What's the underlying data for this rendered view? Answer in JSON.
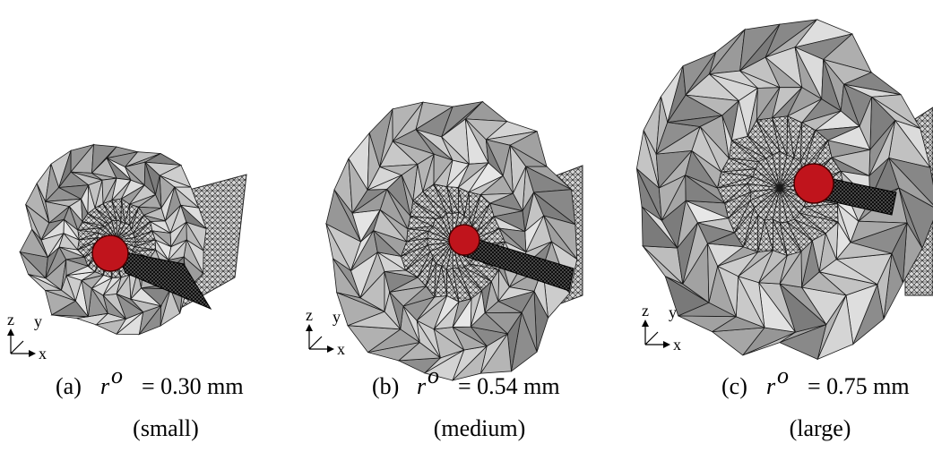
{
  "panels": [
    {
      "label": "(a)",
      "symbol": "r",
      "superscript": "o",
      "value_text": "= 0.30 mm",
      "size": "(small)",
      "axes": {
        "z": "z",
        "y": "y",
        "x": "x"
      }
    },
    {
      "label": "(b)",
      "symbol": "r",
      "superscript": "o",
      "value_text": "= 0.54 mm",
      "size": "(medium)",
      "axes": {
        "z": "z",
        "y": "y",
        "x": "x"
      }
    },
    {
      "label": "(c)",
      "symbol": "r",
      "superscript": "o",
      "value_text": "= 0.75 mm",
      "size": "(large)",
      "axes": {
        "z": "z",
        "y": "y",
        "x": "x"
      }
    }
  ]
}
